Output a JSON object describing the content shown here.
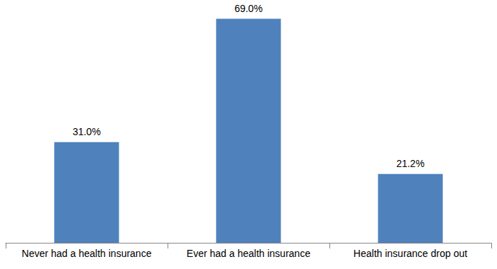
{
  "chart_data": {
    "type": "bar",
    "categories": [
      "Never had a health insurance",
      "Ever had a health insurance",
      "Health insurance drop out"
    ],
    "values": [
      31.0,
      69.0,
      21.2
    ],
    "value_labels": [
      "31.0%",
      "69.0%",
      "21.2%"
    ],
    "color": "#4f81bd",
    "ylim": [
      0,
      70
    ],
    "grid": false,
    "data_labels": true,
    "tick_labels": "x"
  }
}
